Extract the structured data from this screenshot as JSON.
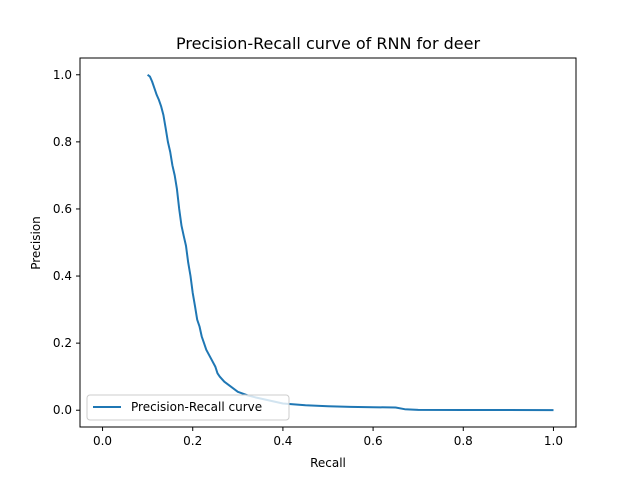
{
  "chart_data": {
    "type": "line",
    "title": "Precision-Recall curve of RNN for deer",
    "xlabel": "Recall",
    "ylabel": "Precision",
    "xlim": [
      -0.05,
      1.05
    ],
    "ylim": [
      -0.05,
      1.05
    ],
    "xticks": [
      0.0,
      0.2,
      0.4,
      0.6,
      0.8,
      1.0
    ],
    "xtick_labels": [
      "0.0",
      "0.2",
      "0.4",
      "0.6",
      "0.8",
      "1.0"
    ],
    "yticks": [
      0.0,
      0.2,
      0.4,
      0.6,
      0.8,
      1.0
    ],
    "ytick_labels": [
      "0.0",
      "0.2",
      "0.4",
      "0.6",
      "0.8",
      "1.0"
    ],
    "grid": false,
    "legend": {
      "placement": "lower left"
    },
    "series": [
      {
        "name": "Precision-Recall curve",
        "color": "#1f77b4",
        "x": [
          0.1,
          0.105,
          0.11,
          0.115,
          0.12,
          0.125,
          0.13,
          0.135,
          0.14,
          0.145,
          0.15,
          0.155,
          0.16,
          0.165,
          0.17,
          0.175,
          0.18,
          0.185,
          0.19,
          0.195,
          0.2,
          0.205,
          0.21,
          0.215,
          0.22,
          0.225,
          0.23,
          0.24,
          0.25,
          0.255,
          0.26,
          0.27,
          0.28,
          0.29,
          0.3,
          0.32,
          0.34,
          0.36,
          0.38,
          0.4,
          0.45,
          0.5,
          0.55,
          0.6,
          0.65,
          0.67,
          0.7,
          0.8,
          0.9,
          1.0
        ],
        "y": [
          1.0,
          0.995,
          0.98,
          0.96,
          0.94,
          0.925,
          0.905,
          0.88,
          0.84,
          0.8,
          0.77,
          0.73,
          0.7,
          0.66,
          0.6,
          0.55,
          0.52,
          0.49,
          0.44,
          0.4,
          0.35,
          0.31,
          0.27,
          0.25,
          0.22,
          0.2,
          0.18,
          0.155,
          0.13,
          0.11,
          0.1,
          0.085,
          0.075,
          0.065,
          0.055,
          0.045,
          0.038,
          0.032,
          0.026,
          0.02,
          0.015,
          0.012,
          0.01,
          0.009,
          0.008,
          0.003,
          0.001,
          0.0008,
          0.0006,
          0.0005
        ]
      }
    ]
  }
}
